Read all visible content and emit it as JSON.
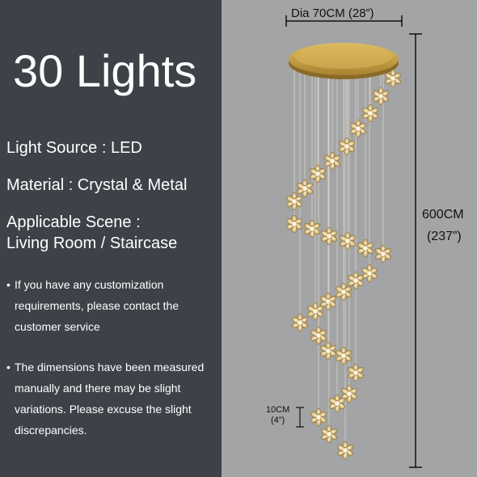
{
  "headline": "30 Lights",
  "specs": {
    "light_source": "Light Source : LED",
    "material": "Material : Crystal & Metal",
    "scene_title": "Applicable Scene :",
    "scene_value": "Living Room / Staircase"
  },
  "notes": {
    "bullet_glyph": "•",
    "customization": "If you have any customization requirements, please contact the customer service",
    "dimensions": "The dimensions have been measured manually and there may be slight variations. Please excuse the slight discrepancies."
  },
  "dimensions": {
    "diameter": "Dia 70CM (28”)",
    "height_cm": "600CM",
    "height_in": "(237”)",
    "pendant_cm": "10CM",
    "pendant_in": "(4”)"
  },
  "colors": {
    "panel_dark": "#3d4148",
    "panel_light": "#a3a4a6",
    "canopy_gold": "#c9a24a",
    "crystal": "#d8c08a"
  },
  "product": {
    "pendant_count": 30,
    "pendant_icon": "crystal-flower-icon",
    "canopy_icon": "round-canopy-icon"
  }
}
